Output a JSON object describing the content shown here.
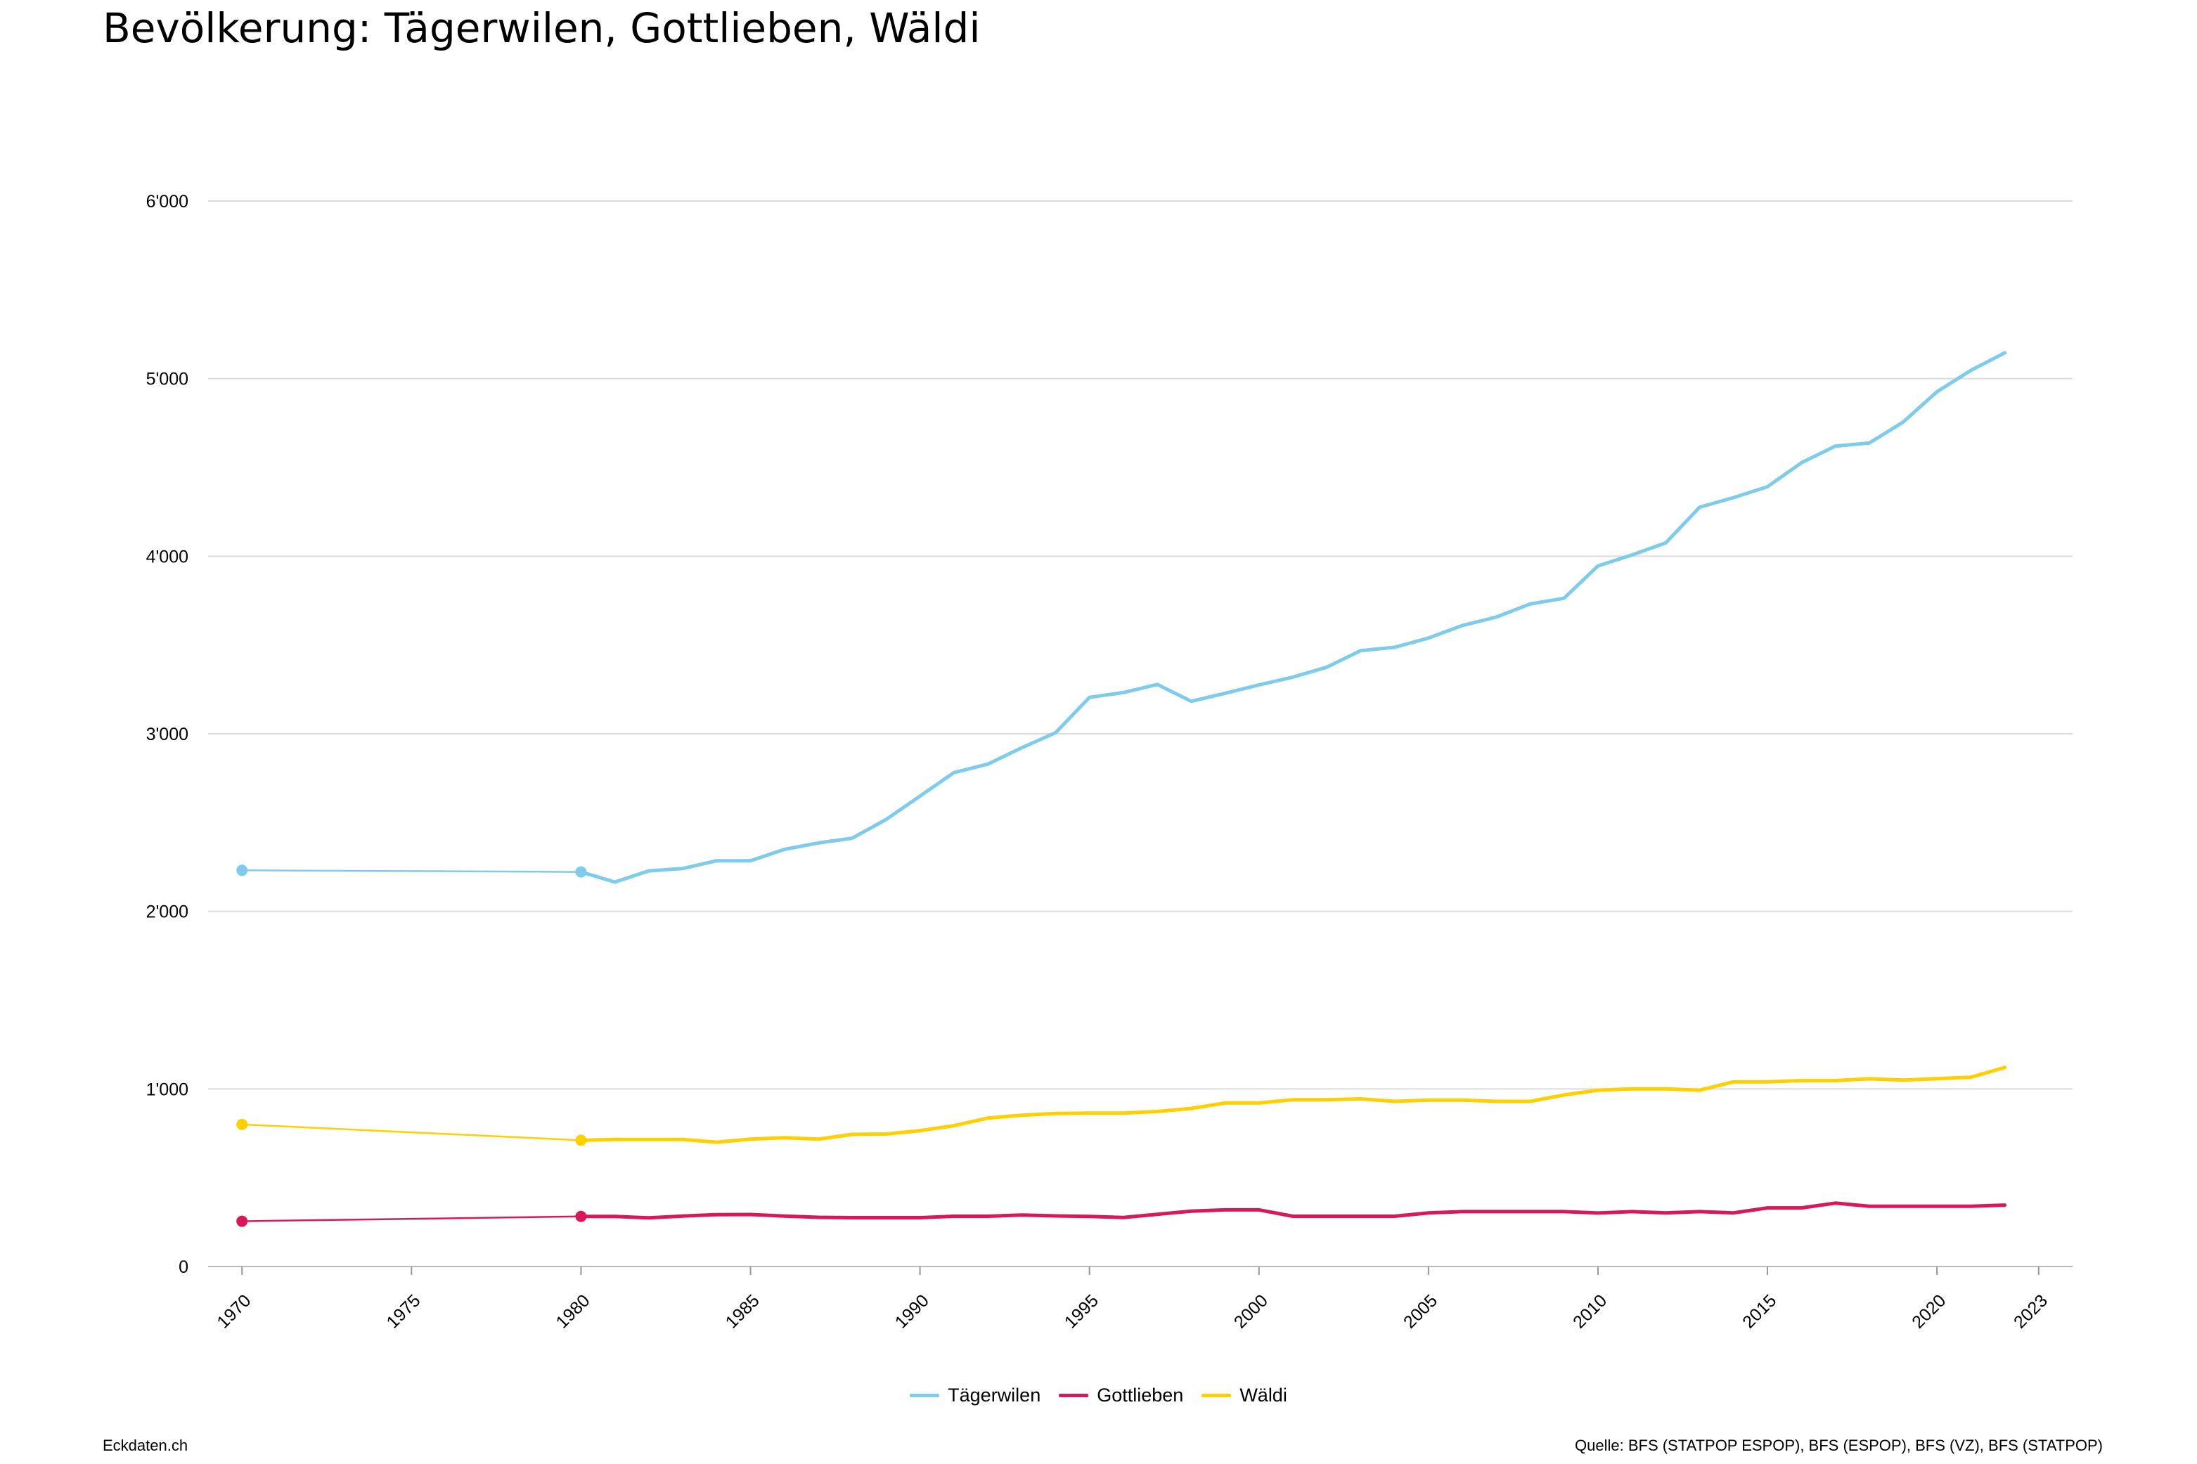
{
  "title": "Bevölkerung: Tägerwilen, Gottlieben, Wäldi",
  "footer": {
    "brand": "Eckdaten.ch",
    "source": "Quelle: BFS (STATPOP ESPOP), BFS (ESPOP), BFS (VZ), BFS (STATPOP)"
  },
  "chart_data": {
    "type": "line",
    "title": "Bevölkerung: Tägerwilen, Gottlieben, Wäldi",
    "xlim": [
      1969,
      2024
    ],
    "ylim": [
      0,
      6000
    ],
    "grid": true,
    "legend_position": "bottom-center",
    "y_ticks": [
      {
        "value": 0,
        "label": "0"
      },
      {
        "value": 1000,
        "label": "1'000"
      },
      {
        "value": 2000,
        "label": "2'000"
      },
      {
        "value": 3000,
        "label": "3'000"
      },
      {
        "value": 4000,
        "label": "4'000"
      },
      {
        "value": 5000,
        "label": "5'000"
      },
      {
        "value": 6000,
        "label": "6'000"
      }
    ],
    "x_ticks": [
      {
        "value": 1970,
        "label": "1970"
      },
      {
        "value": 1975,
        "label": "1975"
      },
      {
        "value": 1980,
        "label": "1980"
      },
      {
        "value": 1985,
        "label": "1985"
      },
      {
        "value": 1990,
        "label": "1990"
      },
      {
        "value": 1995,
        "label": "1995"
      },
      {
        "value": 2000,
        "label": "2000"
      },
      {
        "value": 2005,
        "label": "2005"
      },
      {
        "value": 2010,
        "label": "2010"
      },
      {
        "value": 2015,
        "label": "2015"
      },
      {
        "value": 2020,
        "label": "2020"
      },
      {
        "value": 2023,
        "label": "2023"
      }
    ],
    "series": [
      {
        "name": "Tägerwilen",
        "color": "#7ecbeb",
        "census_points": [
          1970,
          1980
        ],
        "x": [
          1970,
          1980,
          1981,
          1982,
          1983,
          1984,
          1985,
          1986,
          1987,
          1988,
          1989,
          1990,
          1991,
          1992,
          1993,
          1994,
          1995,
          1996,
          1997,
          1998,
          1999,
          2000,
          2001,
          2002,
          2003,
          2004,
          2005,
          2006,
          2007,
          2008,
          2009,
          2010,
          2011,
          2012,
          2013,
          2014,
          2015,
          2016,
          2017,
          2018,
          2019,
          2020,
          2021,
          2022
        ],
        "values": [
          2231,
          2222,
          2165,
          2228,
          2241,
          2285,
          2285,
          2349,
          2385,
          2412,
          2517,
          2649,
          2781,
          2829,
          2921,
          3006,
          3205,
          3232,
          3278,
          3183,
          3228,
          3275,
          3319,
          3375,
          3468,
          3487,
          3539,
          3610,
          3657,
          3731,
          3763,
          3945,
          4007,
          4075,
          4276,
          4330,
          4391,
          4526,
          4620,
          4637,
          4755,
          4926,
          5046,
          5145
        ]
      },
      {
        "name": "Gottlieben",
        "color": "#d9185a",
        "census_points": [
          1970,
          1980
        ],
        "x": [
          1970,
          1980,
          1981,
          1982,
          1983,
          1984,
          1985,
          1986,
          1987,
          1988,
          1989,
          1990,
          1991,
          1992,
          1993,
          1994,
          1995,
          1996,
          1997,
          1998,
          1999,
          2000,
          2001,
          2002,
          2003,
          2004,
          2005,
          2006,
          2007,
          2008,
          2009,
          2010,
          2011,
          2012,
          2013,
          2014,
          2015,
          2016,
          2017,
          2018,
          2019,
          2020,
          2021,
          2022
        ],
        "values": [
          255,
          282,
          282,
          274,
          284,
          292,
          293,
          284,
          277,
          275,
          275,
          275,
          283,
          283,
          290,
          285,
          282,
          276,
          294,
          312,
          319,
          319,
          283,
          283,
          283,
          283,
          302,
          309,
          309,
          309,
          309,
          301,
          309,
          302,
          309,
          302,
          330,
          330,
          357,
          339,
          339,
          339,
          339,
          346
        ]
      },
      {
        "name": "Wäldi",
        "color": "#ffcf00",
        "census_points": [
          1970,
          1980
        ],
        "x": [
          1970,
          1980,
          1981,
          1982,
          1983,
          1984,
          1985,
          1986,
          1987,
          1988,
          1989,
          1990,
          1991,
          1992,
          1993,
          1994,
          1995,
          1996,
          1997,
          1998,
          1999,
          2000,
          2001,
          2002,
          2003,
          2004,
          2005,
          2006,
          2007,
          2008,
          2009,
          2010,
          2011,
          2012,
          2013,
          2014,
          2015,
          2016,
          2017,
          2018,
          2019,
          2020,
          2021,
          2022
        ],
        "values": [
          800,
          711,
          715,
          715,
          715,
          700,
          717,
          725,
          717,
          744,
          746,
          765,
          793,
          836,
          852,
          862,
          864,
          864,
          873,
          890,
          921,
          921,
          939,
          939,
          944,
          930,
          937,
          937,
          930,
          930,
          966,
          993,
          1000,
          1000,
          993,
          1040,
          1040,
          1047,
          1047,
          1057,
          1050,
          1058,
          1066,
          1121
        ]
      }
    ]
  }
}
